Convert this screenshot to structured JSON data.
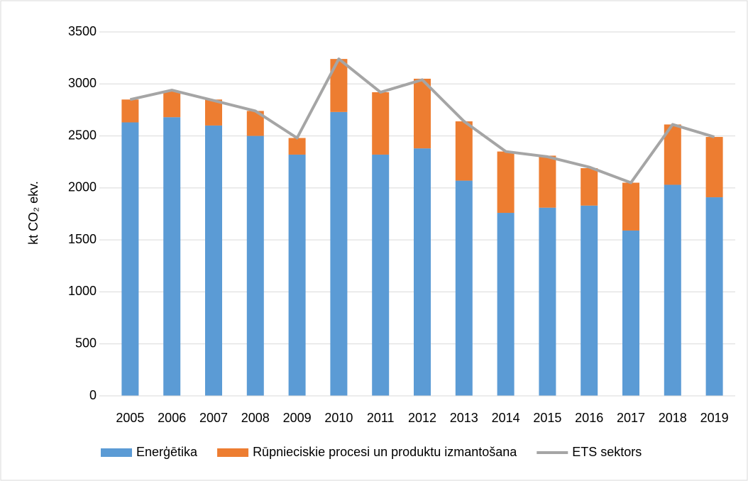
{
  "chart_data": {
    "type": "bar_line",
    "y_label": "kt CO₂ ekv.",
    "categories": [
      "2005",
      "2006",
      "2007",
      "2008",
      "2009",
      "2010",
      "2011",
      "2012",
      "2013",
      "2014",
      "2015",
      "2016",
      "2017",
      "2018",
      "2019"
    ],
    "series": [
      {
        "name": "Enerģētika",
        "color": "#5b9bd5",
        "type": "bar",
        "values": [
          2630,
          2680,
          2600,
          2500,
          2320,
          2730,
          2320,
          2380,
          2070,
          1760,
          1810,
          1830,
          1590,
          2030,
          1910
        ]
      },
      {
        "name": "Rūpnieciskie procesi un produktu izmantošana",
        "color": "#ed7d31",
        "type": "bar",
        "values": [
          220,
          250,
          250,
          240,
          160,
          510,
          600,
          670,
          570,
          590,
          500,
          360,
          460,
          580,
          580
        ]
      },
      {
        "name": "ETS sektors",
        "color": "#a5a5a5",
        "type": "line",
        "values": [
          2850,
          2940,
          2840,
          2740,
          2480,
          3240,
          2920,
          3040,
          2640,
          2350,
          2300,
          2200,
          2050,
          2610,
          2490
        ]
      }
    ],
    "ylim": [
      0,
      3500
    ],
    "yticks": [
      0,
      500,
      1000,
      1500,
      2000,
      2500,
      3000,
      3500
    ],
    "grid": true,
    "legend": "bottom"
  }
}
